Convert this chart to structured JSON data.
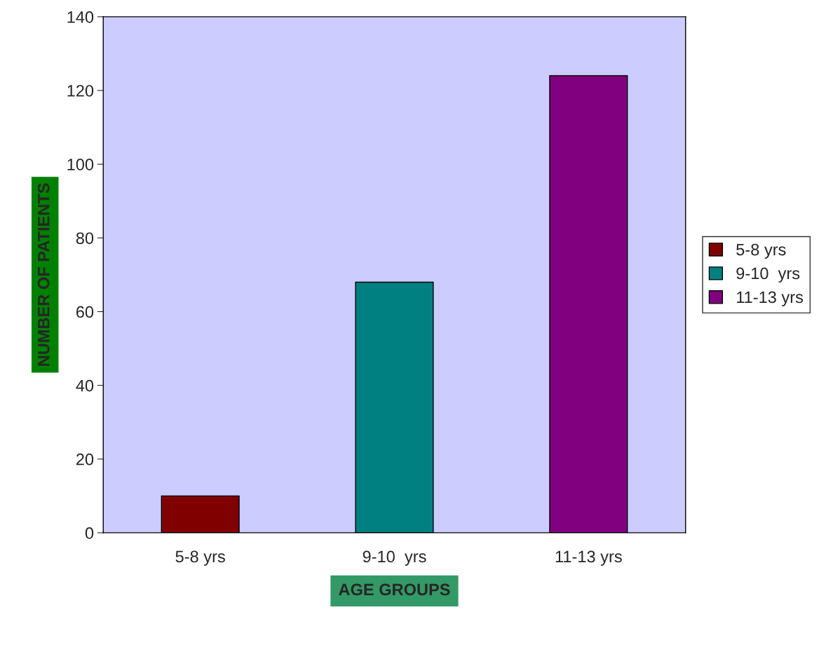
{
  "chart_data": {
    "type": "bar",
    "xlabel": "AGE GROUPS",
    "ylabel": "NUMBER OF PATIENTS",
    "categories": [
      "5-8 yrs",
      "9-10  yrs",
      "11-13 yrs"
    ],
    "series": [
      {
        "name": "5-8 yrs",
        "color": "#800000",
        "values": [
          10,
          null,
          null
        ]
      },
      {
        "name": "9-10  yrs",
        "color": "#008080",
        "values": [
          null,
          68,
          null
        ]
      },
      {
        "name": "11-13 yrs",
        "color": "#800080",
        "values": [
          null,
          null,
          124
        ]
      }
    ],
    "ylim": [
      0,
      140
    ],
    "yticks": [
      0,
      20,
      40,
      60,
      80,
      100,
      120,
      140
    ],
    "grid": false,
    "legend": "right"
  }
}
